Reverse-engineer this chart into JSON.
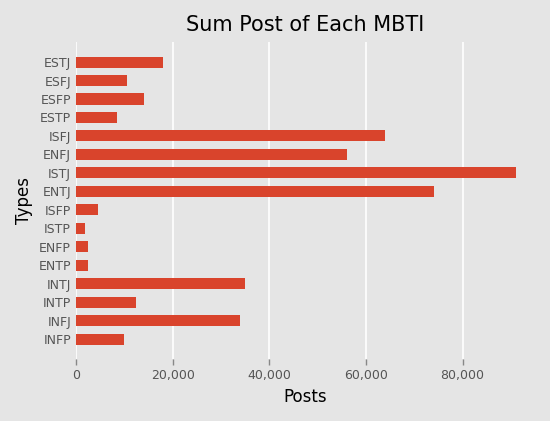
{
  "title": "Sum Post of Each MBTI",
  "xlabel": "Posts",
  "ylabel": "Types",
  "categories": [
    "ESTJ",
    "ESFJ",
    "ESFP",
    "ESTP",
    "ISFJ",
    "ENFJ",
    "ISTJ",
    "ENTJ",
    "ISFP",
    "ISTP",
    "ENFP",
    "ENTP",
    "INTJ",
    "INTP",
    "INFJ",
    "INFP"
  ],
  "values": [
    18000,
    10500,
    14000,
    8500,
    64000,
    56000,
    91000,
    74000,
    4500,
    1800,
    2500,
    2500,
    35000,
    12500,
    34000,
    10000
  ],
  "bar_color": "#d9442c",
  "background_color": "#e5e5e5",
  "xlim": [
    0,
    95000
  ],
  "title_fontsize": 15,
  "label_fontsize": 12,
  "tick_fontsize": 9
}
